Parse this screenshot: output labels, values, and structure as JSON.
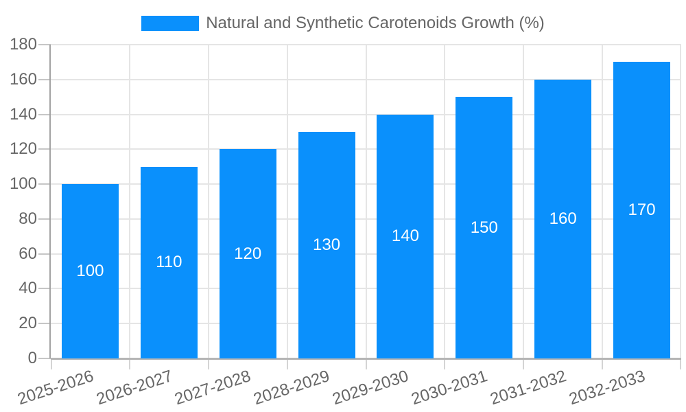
{
  "chart_data": {
    "type": "bar",
    "title": "Natural and Synthetic Carotenoids Growth (%)",
    "categories": [
      "2025-2026",
      "2026-2027",
      "2027-2028",
      "2028-2029",
      "2029-2030",
      "2030-2031",
      "2031-2032",
      "2032-2033"
    ],
    "series": [
      {
        "name": "Natural and Synthetic Carotenoids Growth (%)",
        "values": [
          100,
          110,
          120,
          130,
          140,
          150,
          160,
          170
        ]
      }
    ],
    "values": [
      100,
      110,
      120,
      130,
      140,
      150,
      160,
      170
    ],
    "bar_labels": [
      "100",
      "110",
      "120",
      "130",
      "140",
      "150",
      "160",
      "170"
    ],
    "yticks": [
      0,
      20,
      40,
      60,
      80,
      100,
      120,
      140,
      160,
      180
    ],
    "ylim": [
      0,
      180
    ],
    "xlabel": "",
    "ylabel": "",
    "grid": true,
    "legend_position": "top",
    "colors": {
      "bar": "#0a90fc",
      "bar_label": "#ffffff",
      "grid": "#e5e5e5",
      "y_axis_line": "#a2a2a2",
      "x_axis_line": "#b5b5b5",
      "y_tick_mark": "#c6c6c6",
      "x_tick_mark": "#d4d4d4",
      "tick_text": "#666666",
      "legend_text": "#666666",
      "background": "#ffffff"
    }
  }
}
